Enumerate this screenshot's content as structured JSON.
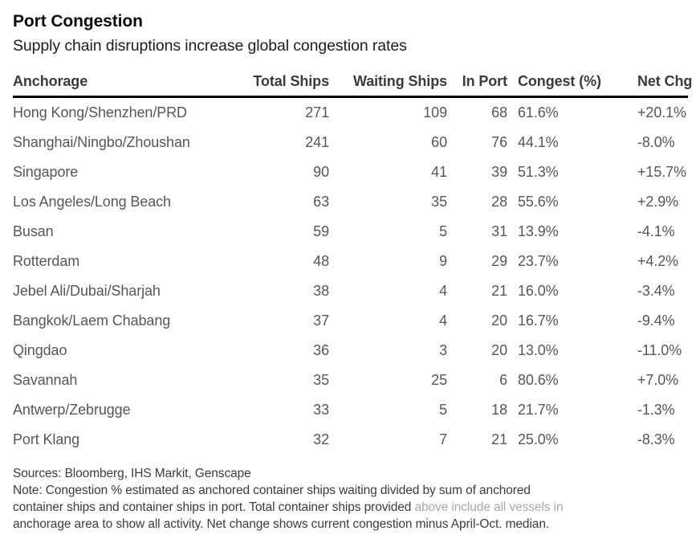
{
  "chart_data": {
    "type": "table",
    "title": "Port Congestion",
    "subtitle": "Supply chain disruptions increase global congestion rates",
    "columns": [
      "Anchorage",
      "Total Ships",
      "Waiting Ships",
      "In Port",
      "Congest (%)",
      "Net Chg"
    ],
    "rows": [
      [
        "Hong Kong/Shenzhen/PRD",
        "271",
        "109",
        "68",
        "61.6%",
        "+20.1%"
      ],
      [
        "Shanghai/Ningbo/Zhoushan",
        "241",
        "60",
        "76",
        "44.1%",
        "-8.0%"
      ],
      [
        "Singapore",
        "90",
        "41",
        "39",
        "51.3%",
        "+15.7%"
      ],
      [
        "Los Angeles/Long Beach",
        "63",
        "35",
        "28",
        "55.6%",
        "+2.9%"
      ],
      [
        "Busan",
        "59",
        "5",
        "31",
        "13.9%",
        "-4.1%"
      ],
      [
        "Rotterdam",
        "48",
        "9",
        "29",
        "23.7%",
        "+4.2%"
      ],
      [
        "Jebel Ali/Dubai/Sharjah",
        "38",
        "4",
        "21",
        "16.0%",
        "-3.4%"
      ],
      [
        "Bangkok/Laem Chabang",
        "37",
        "4",
        "20",
        "16.7%",
        "-9.4%"
      ],
      [
        "Qingdao",
        "36",
        "3",
        "20",
        "13.0%",
        "-11.0%"
      ],
      [
        "Savannah",
        "35",
        "25",
        "6",
        "80.6%",
        "+7.0%"
      ],
      [
        "Antwerp/Zebrugge",
        "33",
        "5",
        "18",
        "21.7%",
        "-1.3%"
      ],
      [
        "Port Klang",
        "32",
        "7",
        "21",
        "25.0%",
        "-8.3%"
      ]
    ],
    "column_alignment": [
      "left",
      "right",
      "right",
      "right",
      "left",
      "left"
    ],
    "layout_hints": {
      "header_rule": "thick-black",
      "row_separators": "none"
    }
  },
  "footer": {
    "sources": "Sources: Bloomberg, IHS Markit, Genscape",
    "note_line1": "Note: Congestion % estimated as anchored container ships waiting divided by sum of anchored",
    "note_line2_main": "container ships and container ships in port. Total container ships provided ",
    "note_line2_faded": "above include all vessels in",
    "note_line3": "anchorage area to show all activity. Net change shows current congestion minus April-Oct. median."
  },
  "colors": {
    "background": "#ffffff",
    "title_text": "#0a0a0a",
    "header_text": "#3b3b3b",
    "row_text": "#57575a",
    "footer_text": "#3c3c3c",
    "faded_note_text": "#a8a8a8",
    "header_rule": "#000000"
  }
}
